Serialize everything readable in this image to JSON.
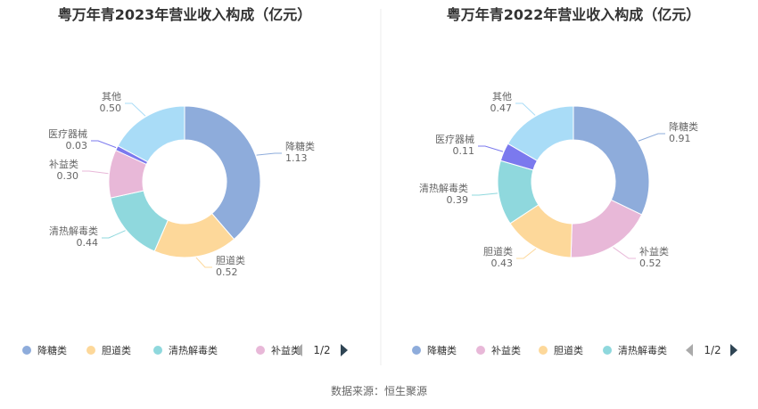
{
  "chart_data": [
    {
      "type": "pie",
      "title": "粤万年青2023年营业收入构成（亿元）",
      "categories": [
        "降糖类",
        "胆道类",
        "清热解毒类",
        "补益类",
        "医疗器械",
        "其他"
      ],
      "values": [
        1.13,
        0.52,
        0.44,
        0.3,
        0.03,
        0.5
      ],
      "value_labels": [
        "1.13",
        "0.52",
        "0.44",
        "0.30",
        "0.03",
        "0.50"
      ],
      "colors": [
        "#8eacdb",
        "#fdd89a",
        "#8fd8dd",
        "#e8b8d8",
        "#7b79ee",
        "#a9dcf7"
      ],
      "legend": {
        "position": "bottom",
        "items": [
          "降糖类",
          "胆道类",
          "清热解毒类",
          "补益类"
        ],
        "colors": [
          "#8eacdb",
          "#fdd89a",
          "#8fd8dd",
          "#e8b8d8"
        ],
        "page": "1/2"
      }
    },
    {
      "type": "pie",
      "title": "粤万年青2022年营业收入构成（亿元）",
      "categories": [
        "降糖类",
        "补益类",
        "胆道类",
        "清热解毒类",
        "医疗器械",
        "其他"
      ],
      "values": [
        0.91,
        0.52,
        0.43,
        0.39,
        0.11,
        0.47
      ],
      "value_labels": [
        "0.91",
        "0.52",
        "0.43",
        "0.39",
        "0.11",
        "0.47"
      ],
      "colors": [
        "#8eacdb",
        "#e8b8d8",
        "#fdd89a",
        "#8fd8dd",
        "#7b79ee",
        "#a9dcf7"
      ],
      "legend": {
        "position": "bottom",
        "items": [
          "降糖类",
          "补益类",
          "胆道类",
          "清热解毒类"
        ],
        "colors": [
          "#8eacdb",
          "#e8b8d8",
          "#fdd89a",
          "#8fd8dd"
        ],
        "page": "1/2"
      }
    }
  ],
  "footer": {
    "source": "数据来源：恒生聚源"
  }
}
